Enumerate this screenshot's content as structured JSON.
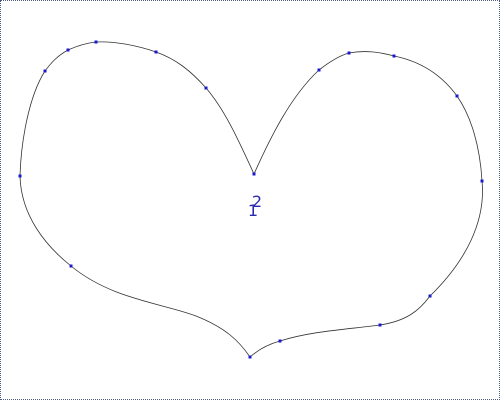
{
  "colors": {
    "curve": "#333333",
    "control_point": "#1a1acc",
    "label": "#2a2ab0",
    "border": "#4a5a8a"
  },
  "labels": {
    "top": "2",
    "bottom": "1"
  }
}
